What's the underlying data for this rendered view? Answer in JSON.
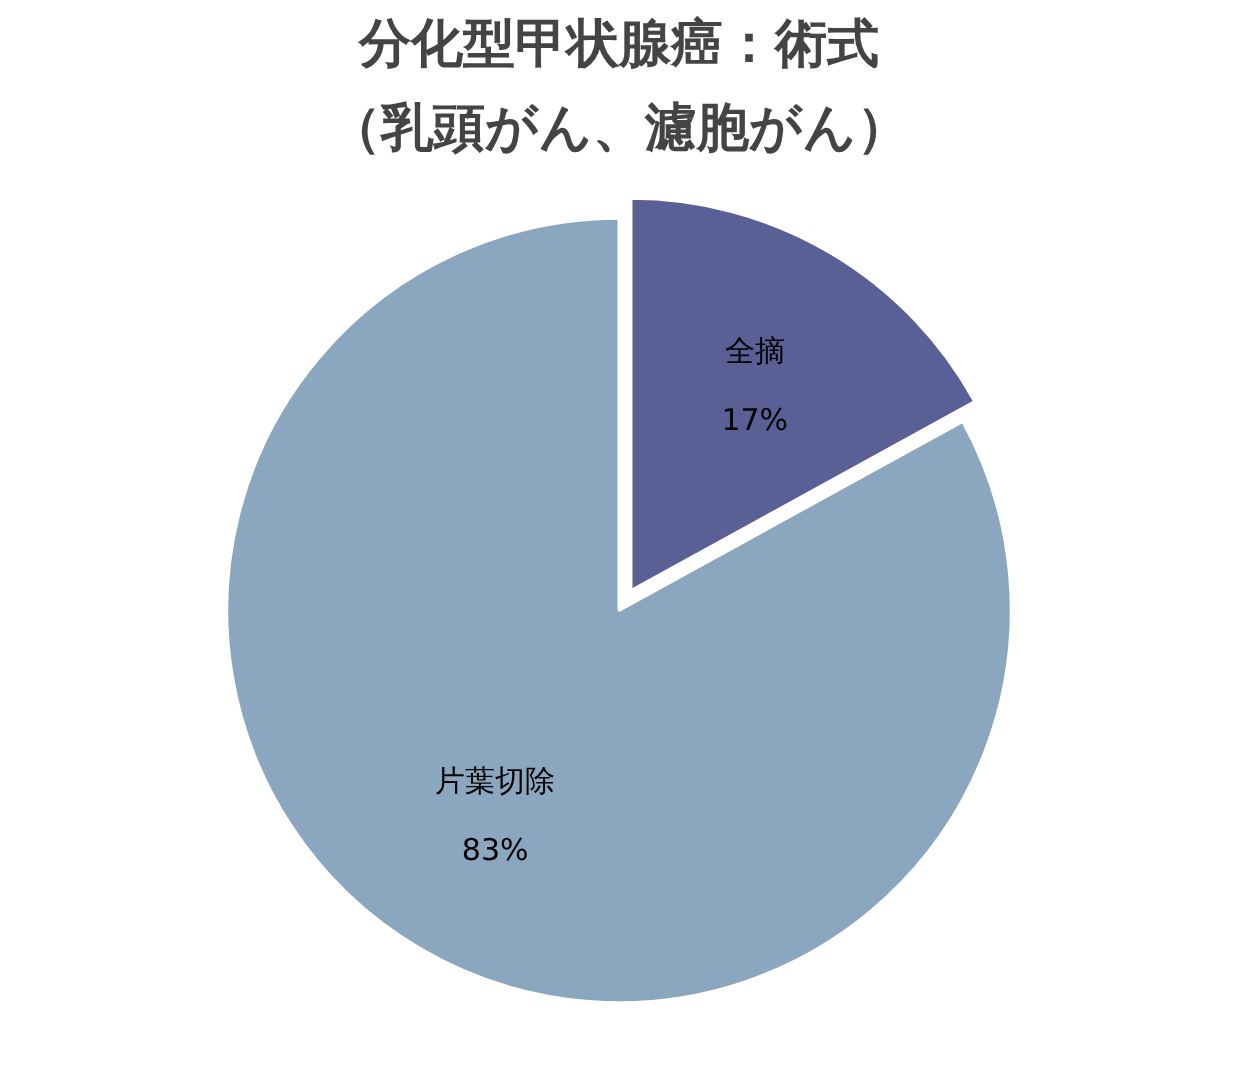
{
  "chart_data": {
    "type": "pie",
    "title": "分化型甲状腺癌：術式",
    "subtitle": "（乳頭がん、濾胞がん）",
    "categories": [
      "全摘",
      "片葉切除"
    ],
    "values": [
      17,
      83
    ],
    "value_labels": [
      "17%",
      "83%"
    ],
    "colors": [
      "#5a6096",
      "#8ba7bf"
    ]
  }
}
